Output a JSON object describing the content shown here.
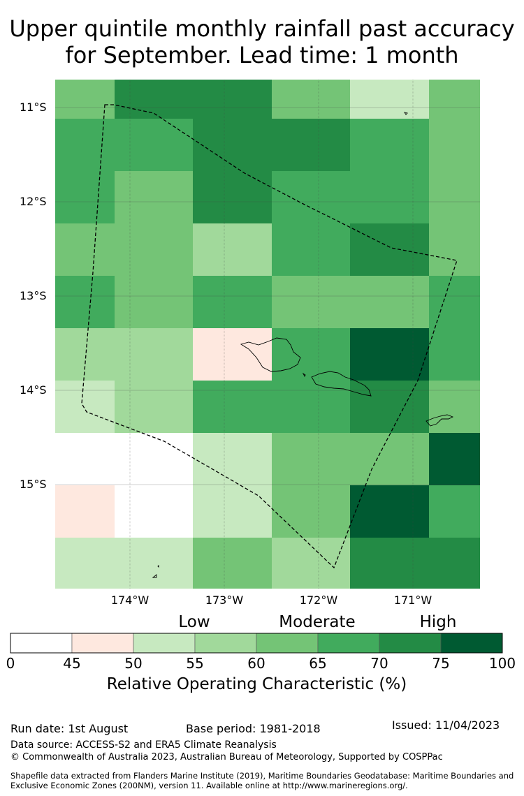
{
  "title": {
    "line1": "Upper quintile monthly rainfall past accuracy",
    "line2": "for September. Lead time: 1 month"
  },
  "map": {
    "lat_ticks": [
      "11°S",
      "12°S",
      "13°S",
      "14°S",
      "15°S"
    ],
    "lon_ticks": [
      "174°W",
      "173°W",
      "172°W",
      "171°W"
    ],
    "grid_cells_roc_percent": [
      [
        60,
        70,
        70,
        60,
        52,
        60
      ],
      [
        65,
        65,
        70,
        70,
        65,
        60
      ],
      [
        65,
        60,
        70,
        65,
        65,
        60
      ],
      [
        60,
        60,
        57,
        65,
        70,
        60
      ],
      [
        65,
        60,
        65,
        60,
        60,
        65
      ],
      [
        57,
        57,
        48,
        65,
        80,
        65
      ],
      [
        52,
        57,
        65,
        65,
        70,
        60
      ],
      [
        40,
        40,
        52,
        60,
        60,
        80
      ],
      [
        48,
        40,
        52,
        60,
        80,
        65
      ],
      [
        52,
        52,
        60,
        57,
        70,
        70
      ]
    ]
  },
  "colorbar": {
    "categories": [
      "Low",
      "Moderate",
      "High"
    ],
    "ticks": [
      "0",
      "45",
      "50",
      "55",
      "60",
      "65",
      "70",
      "75",
      "100"
    ],
    "colors": [
      "#ffffff",
      "#fee8df",
      "#c7e9c0",
      "#a1d99b",
      "#74c476",
      "#41ab5d",
      "#238b45",
      "#005a32"
    ],
    "title": "Relative Operating Characteristic (%)"
  },
  "footer": {
    "run_date": "Run date: 1st August",
    "base_period": "Base period: 1981-2018",
    "issued": "Issued: 11/04/2023",
    "data_source": "Data source: ACCESS-S2 and ERA5 Climate Reanalysis",
    "copyright": "© Commonwealth of Australia 2023, Australian Bureau of Meteorology, Supported by COSPPac",
    "shapefile": "Shapefile data extracted from Flanders Marine Institute (2019), Maritime Boundaries Geodatabase: Maritime Boundaries and Exclusive Economic Zones (200NM), version 11. Available online at http://www.marineregions.org/."
  }
}
